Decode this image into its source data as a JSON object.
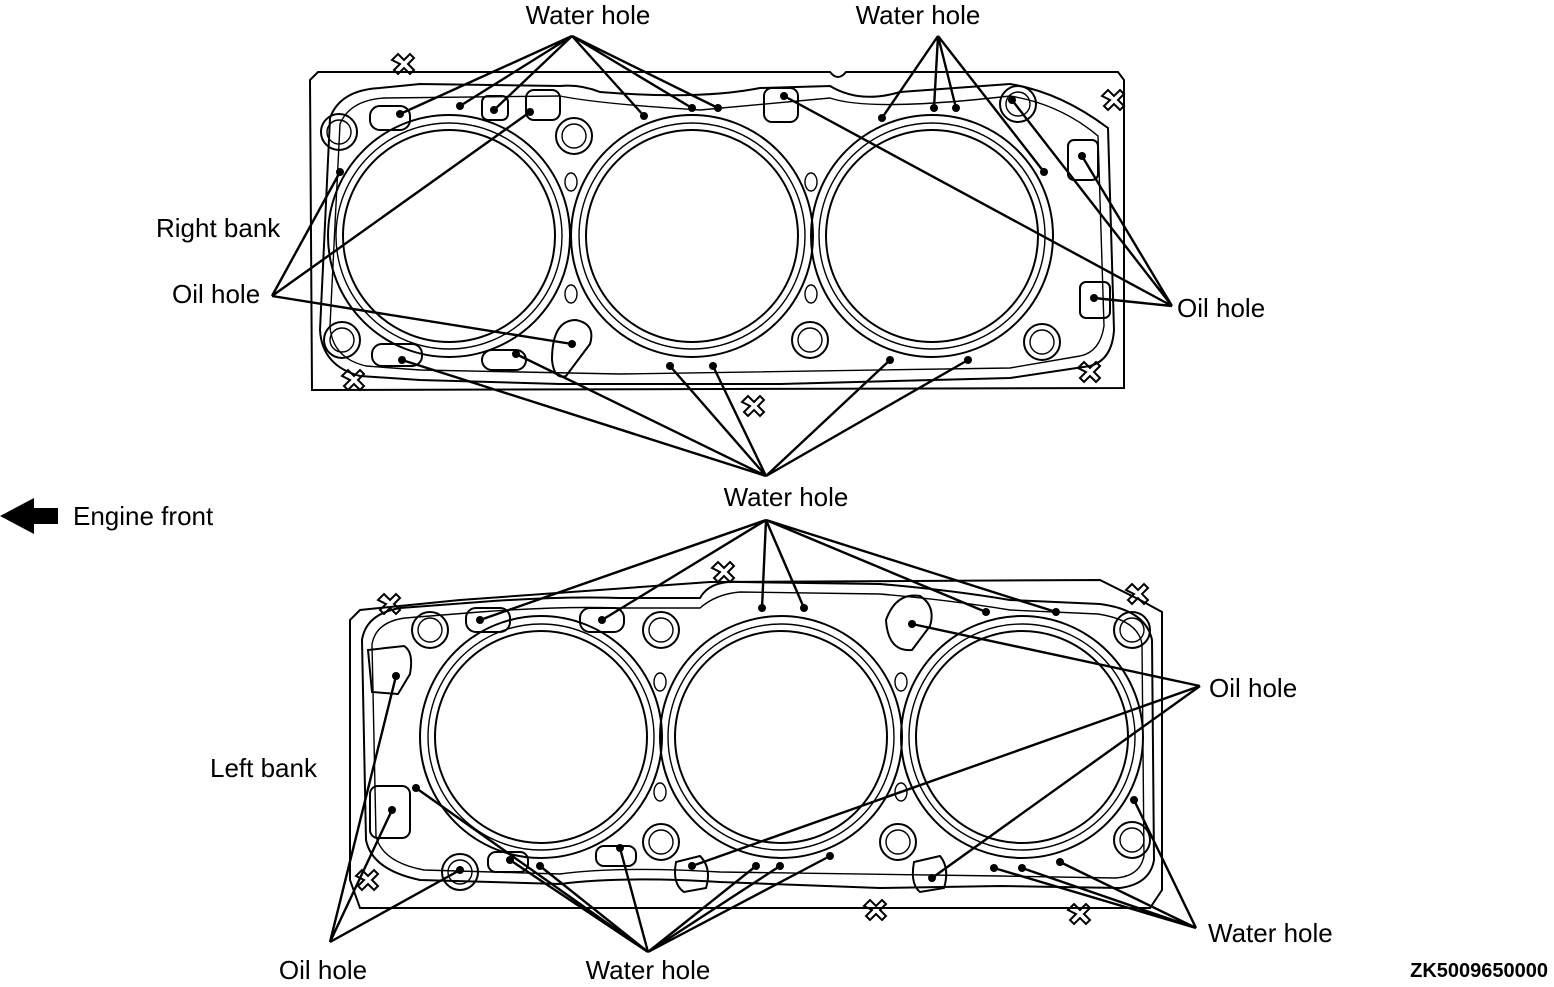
{
  "labels": {
    "right_bank": "Right bank",
    "left_bank": "Left bank",
    "engine_front": "Engine front",
    "oil_hole": "Oil hole",
    "water_hole": "Water hole"
  },
  "figure_code": "ZK5009650000",
  "icons": {
    "engine_front": "arrow-left-icon"
  }
}
